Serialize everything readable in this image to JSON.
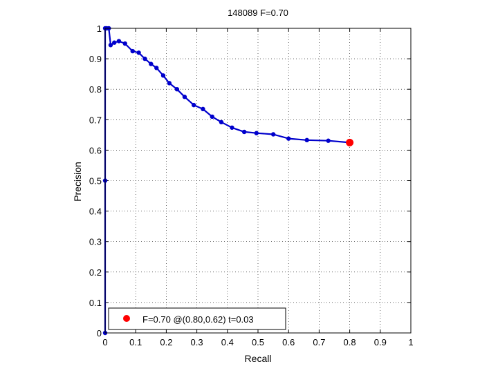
{
  "chart_data": {
    "type": "line",
    "title": "148089 F=0.70",
    "xlabel": "Recall",
    "ylabel": "Precision",
    "xlim": [
      0,
      1
    ],
    "ylim": [
      0,
      1
    ],
    "grid": true,
    "x_ticks": [
      0,
      0.1,
      0.2,
      0.3,
      0.4,
      0.5,
      0.6,
      0.7,
      0.8,
      0.9,
      1
    ],
    "x_tick_labels": [
      "0",
      "0.1",
      "0.2",
      "0.3",
      "0.4",
      "0.5",
      "0.6",
      "0.7",
      "0.8",
      "0.9",
      "1"
    ],
    "y_ticks": [
      0,
      0.1,
      0.2,
      0.3,
      0.4,
      0.5,
      0.6,
      0.7,
      0.8,
      0.9,
      1
    ],
    "y_tick_labels": [
      "0",
      "0.1",
      "0.2",
      "0.3",
      "0.4",
      "0.5",
      "0.6",
      "0.7",
      "0.8",
      "0.9",
      "1"
    ],
    "series": [
      {
        "color": "#0000cc",
        "x": [
          0.0,
          0.0,
          0.0,
          0.005,
          0.012,
          0.018,
          0.03,
          0.045,
          0.065,
          0.09,
          0.11,
          0.13,
          0.15,
          0.168,
          0.19,
          0.21,
          0.235,
          0.26,
          0.29,
          0.32,
          0.35,
          0.38,
          0.415,
          0.455,
          0.495,
          0.55,
          0.6,
          0.66,
          0.73,
          0.8
        ],
        "y": [
          0.0,
          0.5,
          1.0,
          1.0,
          1.0,
          0.945,
          0.953,
          0.958,
          0.95,
          0.925,
          0.92,
          0.9,
          0.883,
          0.87,
          0.845,
          0.82,
          0.8,
          0.775,
          0.748,
          0.735,
          0.71,
          0.692,
          0.674,
          0.66,
          0.656,
          0.652,
          0.638,
          0.633,
          0.631,
          0.625
        ]
      }
    ],
    "highlight_point": {
      "x": 0.8,
      "y": 0.625,
      "color": "#ff0000"
    },
    "legend": {
      "placement": "bottom-left",
      "text": "F=0.70 @(0.80,0.62) t=0.03",
      "marker_color": "#ff0000"
    }
  }
}
